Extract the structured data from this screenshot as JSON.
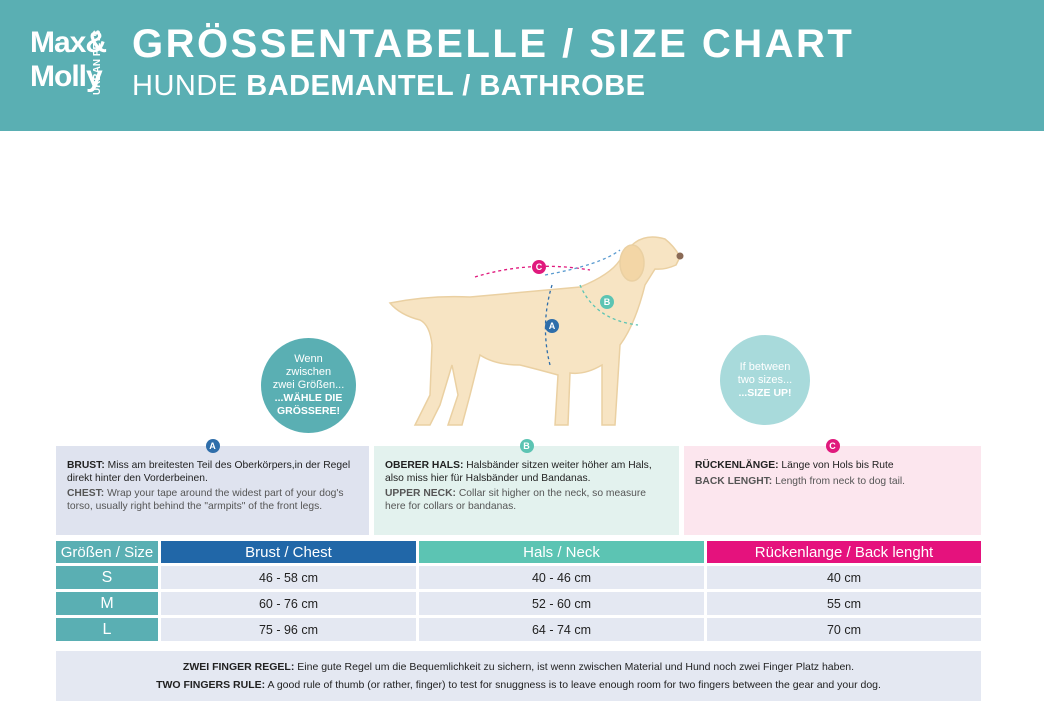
{
  "header": {
    "logo": [
      "Max&",
      "Molly"
    ],
    "logo_tagline": "URBAN PETS",
    "title": "GRÖSSENTABELLE / SIZE CHART",
    "subtitle_light": "HUNDE",
    "subtitle_bold": "BADEMANTEL / BATHROBE"
  },
  "tips": [
    {
      "lines": [
        "Wenn",
        "zwischen",
        "zwei Größen..."
      ],
      "emphasis": [
        "...WÄHLE DIE",
        "GRÖSSERE!"
      ]
    },
    {
      "lines": [
        "If between",
        "two sizes..."
      ],
      "emphasis": [
        "...SIZE UP!"
      ]
    }
  ],
  "measurements": [
    {
      "marker": "A",
      "de_label": "BRUST:",
      "de_text": "Miss am breitesten Teil des Oberkörpers,in der Regel direkt hinter den Vorderbeinen.",
      "en_label": "CHEST:",
      "en_text": "Wrap your tape around the widest part of your dog's torso, usually right behind the \"armpits\" of the front legs."
    },
    {
      "marker": "B",
      "de_label": "OBERER HALS:",
      "de_text": "Halsbänder sitzen weiter höher am Hals, also miss hier für Halsbänder und Bandanas.",
      "en_label": "UPPER NECK:",
      "en_text": "Collar sit higher on the neck, so measure here for collars or bandanas."
    },
    {
      "marker": "C",
      "de_label": "RÜCKENLÄNGE:",
      "de_text": "Länge von Hols bis Rute",
      "en_label": "BACK LENGHT:",
      "en_text": "Length from neck to dog tail."
    }
  ],
  "table": {
    "header": [
      "Größen / Size",
      "Brust / Chest",
      "Hals / Neck",
      "Rückenlange / Back lenght"
    ],
    "rows": [
      [
        "S",
        "46 - 58 cm",
        "40 - 46 cm",
        "40 cm"
      ],
      [
        "M",
        "60 - 76 cm",
        "52 - 60 cm",
        "55 cm"
      ],
      [
        "L",
        "75 - 96 cm",
        "64 - 74 cm",
        "70 cm"
      ]
    ]
  },
  "footer": {
    "lines": [
      {
        "label": "ZWEI FINGER REGEL:",
        "text": "Eine gute Regel um die Bequemlichkeit zu sichern, ist wenn zwischen Material und Hund noch zwei Finger Platz haben."
      },
      {
        "label": "TWO FINGERS RULE:",
        "text": "A good rule of thumb (or rather, finger) to test for snuggness is to leave enough room for two fingers between the gear and your dog."
      }
    ]
  }
}
